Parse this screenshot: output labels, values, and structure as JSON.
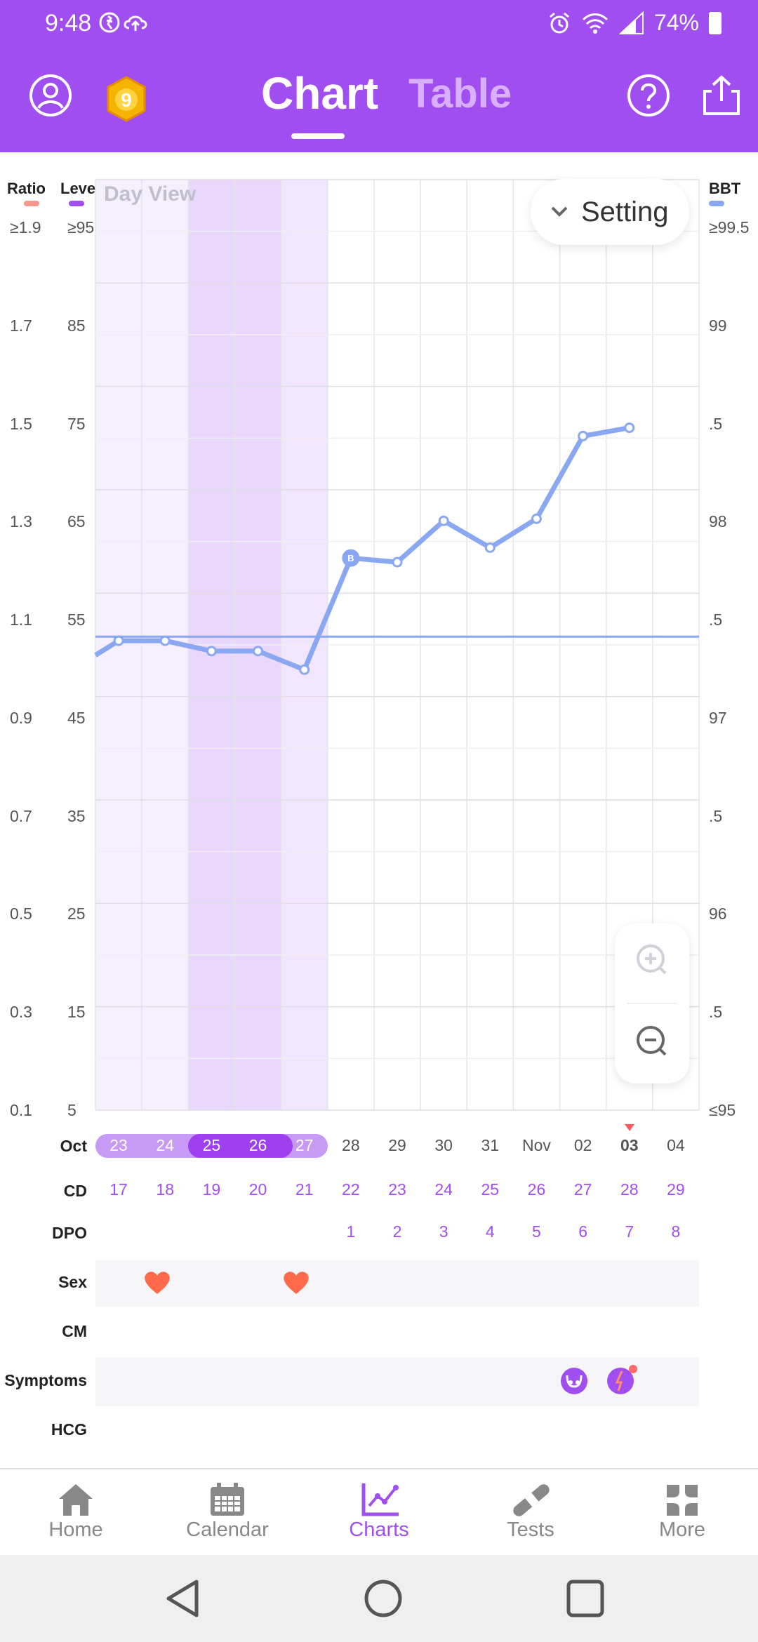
{
  "status_bar": {
    "time": "9:48",
    "battery": "74%"
  },
  "header": {
    "tabs": [
      {
        "label": "Chart",
        "active": true
      },
      {
        "label": "Table",
        "active": false
      }
    ],
    "badge_number": "9",
    "accent_color": "#a04ef0"
  },
  "chart": {
    "view_label": "Day View",
    "setting_label": "Setting",
    "left_axis_titles": [
      "Ratio",
      "Level"
    ],
    "right_axis_title": "BBT",
    "ratio_ticks": [
      "≥1.9",
      "1.7",
      "1.5",
      "1.3",
      "1.1",
      "0.9",
      "0.7",
      "0.5",
      "0.3",
      "0.1"
    ],
    "level_ticks": [
      "≥95",
      "85",
      "75",
      "65",
      "55",
      "45",
      "35",
      "25",
      "15",
      "5"
    ],
    "bbt_ticks": [
      "≥99.5",
      "99",
      ".5",
      "98",
      ".5",
      "97",
      ".5",
      "96",
      ".5",
      "≤95"
    ]
  },
  "chart_data": {
    "type": "line",
    "title": "",
    "xlabel": "",
    "ylabel": "BBT",
    "ylim": [
      95,
      99.5
    ],
    "x": [
      "Oct 23",
      "Oct 24",
      "Oct 25",
      "Oct 26",
      "Oct 27",
      "Oct 28",
      "Oct 29",
      "Oct 30",
      "Oct 31",
      "Nov 01",
      "Nov 02",
      "Nov 03"
    ],
    "series": [
      {
        "values": [
          97.27,
          97.27,
          97.22,
          97.22,
          97.13,
          97.67,
          97.65,
          97.85,
          97.72,
          97.86,
          98.26,
          98.3
        ]
      }
    ],
    "coverline": 97.29,
    "coverline_marker": "B",
    "grid": true,
    "series_color": "#8aa7f2"
  },
  "dates": {
    "month_oct": "Oct",
    "month_nov": "Nov",
    "days": [
      "23",
      "24",
      "25",
      "26",
      "27",
      "28",
      "29",
      "30",
      "31",
      "Nov",
      "02",
      "03",
      "04"
    ],
    "today_index": 11
  },
  "rows": {
    "cd_label": "CD",
    "dpo_label": "DPO",
    "sex_label": "Sex",
    "cm_label": "CM",
    "symptoms_label": "Symptoms",
    "hcg_label": "HCG",
    "cd_values": [
      "17",
      "18",
      "19",
      "20",
      "21",
      "22",
      "23",
      "24",
      "25",
      "26",
      "27",
      "28",
      "29"
    ],
    "dpo_values": [
      "",
      "",
      "",
      "",
      "",
      "1",
      "2",
      "3",
      "4",
      "5",
      "6",
      "7",
      "8"
    ]
  },
  "bottom_nav": [
    {
      "label": "Home",
      "icon": "home-icon",
      "active": false
    },
    {
      "label": "Calendar",
      "icon": "calendar-icon",
      "active": false
    },
    {
      "label": "Charts",
      "icon": "charts-icon",
      "active": true
    },
    {
      "label": "Tests",
      "icon": "tests-icon",
      "active": false
    },
    {
      "label": "More",
      "icon": "more-icon",
      "active": false
    }
  ]
}
